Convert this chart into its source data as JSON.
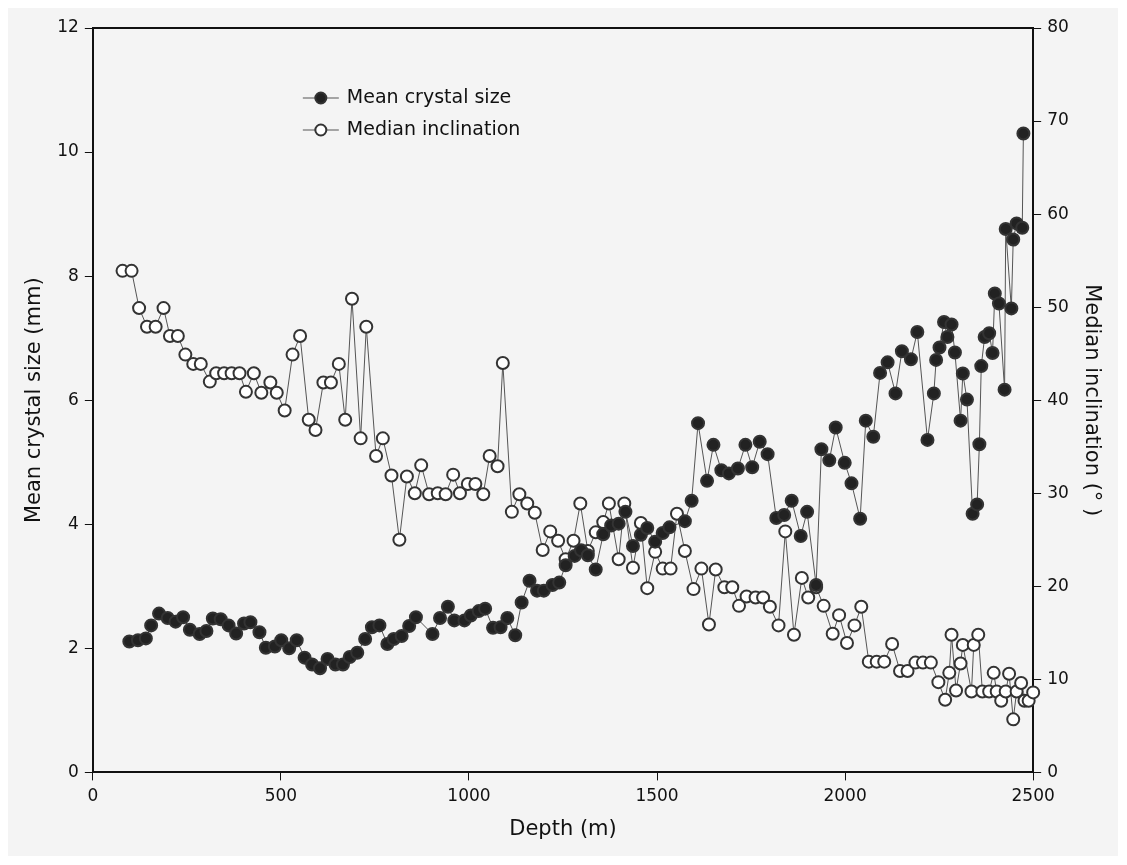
{
  "chart_data": {
    "type": "line",
    "xlabel": "Depth (m)",
    "ylabel": "Mean crystal size (mm)",
    "y2label": "Median inclination (° )",
    "xlim": [
      0,
      2500
    ],
    "xticks": [
      0,
      500,
      1000,
      1500,
      2000,
      2500
    ],
    "ylim": [
      0,
      12
    ],
    "yticks": [
      0,
      2,
      4,
      6,
      8,
      10,
      12
    ],
    "y2lim": [
      0,
      80
    ],
    "y2ticks": [
      0,
      10,
      20,
      30,
      40,
      50,
      60,
      70,
      80
    ],
    "grid": false,
    "legend": "top left",
    "marker": "circle",
    "line_style": "solid",
    "series": [
      {
        "name": "Mean crystal size",
        "color": "#222222",
        "axis": "y",
        "x": [
          97,
          120,
          141,
          155,
          176,
          199,
          220,
          240,
          258,
          284,
          302,
          319,
          340,
          361,
          381,
          402,
          419,
          443,
          460,
          484,
          501,
          522,
          542,
          563,
          583,
          604,
          624,
          645,
          665,
          683,
          703,
          724,
          742,
          762,
          783,
          800,
          821,
          841,
          859,
          903,
          923,
          944,
          961,
          988,
          1005,
          1026,
          1043,
          1064,
          1084,
          1102,
          1123,
          1140,
          1161,
          1181,
          1199,
          1222,
          1240,
          1257,
          1281,
          1298,
          1316,
          1337,
          1357,
          1378,
          1398,
          1416,
          1436,
          1457,
          1474,
          1495,
          1515,
          1533,
          1574,
          1592,
          1609,
          1633,
          1650,
          1671,
          1691,
          1715,
          1735,
          1753,
          1773,
          1794,
          1817,
          1838,
          1858,
          1882,
          1899,
          1923,
          1937,
          1958,
          1975,
          1999,
          2017,
          2040,
          2055,
          2075,
          2093,
          2113,
          2134,
          2151,
          2175,
          2192,
          2219,
          2236,
          2242,
          2251,
          2263,
          2272,
          2283,
          2292,
          2307,
          2313,
          2324,
          2339,
          2351,
          2357,
          2362,
          2371,
          2383,
          2392,
          2398,
          2409,
          2424,
          2427,
          2442,
          2447,
          2456,
          2471,
          2474
        ],
        "values": [
          2.11,
          2.13,
          2.16,
          2.37,
          2.56,
          2.49,
          2.43,
          2.5,
          2.3,
          2.23,
          2.28,
          2.48,
          2.47,
          2.37,
          2.24,
          2.4,
          2.42,
          2.26,
          2.01,
          2.03,
          2.13,
          2.0,
          2.13,
          1.85,
          1.74,
          1.68,
          1.83,
          1.74,
          1.74,
          1.86,
          1.93,
          2.15,
          2.34,
          2.37,
          2.07,
          2.15,
          2.2,
          2.36,
          2.5,
          2.23,
          2.49,
          2.67,
          2.45,
          2.45,
          2.53,
          2.6,
          2.64,
          2.33,
          2.34,
          2.49,
          2.21,
          2.74,
          3.09,
          2.93,
          2.93,
          3.02,
          3.06,
          3.34,
          3.49,
          3.58,
          3.5,
          3.27,
          3.84,
          3.98,
          4.01,
          4.2,
          3.65,
          3.83,
          3.94,
          3.72,
          3.86,
          3.95,
          4.05,
          4.38,
          5.63,
          4.7,
          5.28,
          4.87,
          4.82,
          4.9,
          5.28,
          4.92,
          5.33,
          5.13,
          4.1,
          4.15,
          4.38,
          3.81,
          4.2,
          3.02,
          5.21,
          5.03,
          5.56,
          4.99,
          4.66,
          4.09,
          5.67,
          5.41,
          6.44,
          6.61,
          6.11,
          6.79,
          6.66,
          7.1,
          5.36,
          6.11,
          6.65,
          6.85,
          7.26,
          7.02,
          7.22,
          6.77,
          5.67,
          6.43,
          6.01,
          4.17,
          4.32,
          5.29,
          6.55,
          7.02,
          7.08,
          6.76,
          7.72,
          7.56,
          6.17,
          8.76,
          7.48,
          8.59,
          8.85,
          8.78,
          10.3
        ]
      },
      {
        "name": "Median inclination",
        "color": "#ffffff",
        "axis": "y2",
        "x": [
          79,
          103,
          123,
          144,
          167,
          188,
          205,
          226,
          246,
          267,
          287,
          311,
          328,
          349,
          369,
          390,
          407,
          428,
          448,
          472,
          489,
          510,
          531,
          551,
          574,
          592,
          613,
          633,
          654,
          671,
          689,
          712,
          727,
          753,
          771,
          794,
          815,
          835,
          856,
          873,
          894,
          917,
          938,
          958,
          976,
          997,
          1017,
          1038,
          1055,
          1076,
          1090,
          1114,
          1134,
          1155,
          1175,
          1196,
          1216,
          1237,
          1257,
          1278,
          1296,
          1316,
          1337,
          1357,
          1372,
          1398,
          1413,
          1436,
          1457,
          1474,
          1495,
          1515,
          1536,
          1553,
          1574,
          1597,
          1618,
          1638,
          1656,
          1679,
          1700,
          1718,
          1738,
          1762,
          1782,
          1800,
          1823,
          1841,
          1864,
          1885,
          1902,
          1923,
          1943,
          1967,
          1984,
          2005,
          2025,
          2043,
          2063,
          2084,
          2104,
          2125,
          2146,
          2166,
          2187,
          2207,
          2228,
          2248,
          2266,
          2277,
          2283,
          2295,
          2307,
          2313,
          2336,
          2342,
          2354,
          2365,
          2383,
          2395,
          2403,
          2415,
          2427,
          2436,
          2447,
          2456,
          2468,
          2477,
          2488,
          2500
        ],
        "values": [
          53.9,
          53.9,
          49.9,
          47.9,
          47.9,
          49.9,
          46.9,
          46.9,
          44.9,
          43.9,
          43.9,
          42,
          42.9,
          42.9,
          42.9,
          42.9,
          40.9,
          42.9,
          40.8,
          41.9,
          40.8,
          38.9,
          44.9,
          46.9,
          37.9,
          36.8,
          41.9,
          41.9,
          43.9,
          37.9,
          50.9,
          35.9,
          47.9,
          34,
          35.9,
          31.9,
          25,
          31.8,
          30,
          33,
          29.9,
          30,
          29.9,
          32,
          30,
          31,
          31,
          29.9,
          34,
          32.9,
          44,
          28,
          29.9,
          28.9,
          27.9,
          23.9,
          25.9,
          24.9,
          22.9,
          24.9,
          28.9,
          23.8,
          25.8,
          26.9,
          28.9,
          22.9,
          28.9,
          22,
          26.8,
          19.8,
          23.7,
          21.9,
          21.9,
          27.8,
          23.8,
          19.7,
          21.9,
          15.9,
          21.8,
          19.9,
          19.9,
          17.9,
          18.9,
          18.8,
          18.8,
          17.8,
          15.8,
          25.9,
          14.8,
          20.9,
          18.8,
          19.9,
          17.9,
          14.9,
          16.9,
          13.9,
          15.8,
          17.8,
          11.9,
          11.9,
          11.9,
          13.8,
          10.9,
          10.9,
          11.8,
          11.8,
          11.8,
          9.7,
          7.8,
          10.7,
          14.8,
          8.8,
          11.7,
          13.7,
          8.7,
          13.7,
          14.8,
          8.7,
          8.7,
          10.7,
          8.7,
          7.7,
          8.7,
          10.6,
          5.7,
          8.7,
          9.6,
          7.7,
          7.7,
          8.6
        ]
      }
    ]
  }
}
